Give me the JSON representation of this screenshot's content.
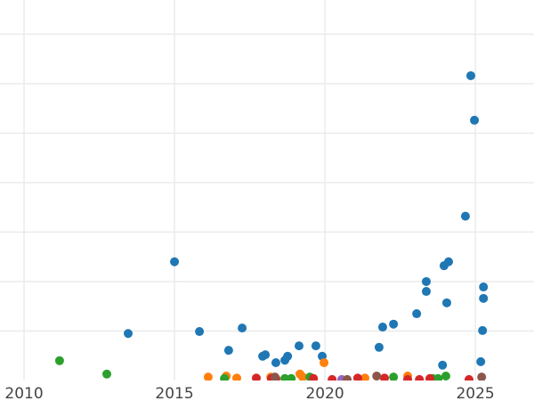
{
  "chart_data": {
    "type": "scatter",
    "title": "",
    "xlabel": "",
    "ylabel": "",
    "xlim": [
      2009.2,
      2026.95
    ],
    "ylim": [
      0,
      7.69
    ],
    "xticks": [
      2010,
      2015,
      2020,
      2025
    ],
    "xtick_labels": [
      "2010",
      "2015",
      "2020",
      "2025"
    ],
    "ygrid": [
      1,
      2,
      3,
      4,
      5,
      6,
      7
    ],
    "grid": true,
    "series": [
      {
        "color": "#1f77b4",
        "points": [
          [
            2024.85,
            6.16
          ],
          [
            2024.97,
            5.26
          ],
          [
            2024.67,
            3.32
          ],
          [
            2015.0,
            2.4
          ],
          [
            2023.96,
            2.32
          ],
          [
            2024.11,
            2.4
          ],
          [
            2023.37,
            2.0
          ],
          [
            2023.37,
            1.8
          ],
          [
            2025.27,
            1.89
          ],
          [
            2025.27,
            1.66
          ],
          [
            2024.05,
            1.57
          ],
          [
            2023.05,
            1.35
          ],
          [
            2013.46,
            0.95
          ],
          [
            2015.83,
            0.99
          ],
          [
            2017.25,
            1.06
          ],
          [
            2022.28,
            1.14
          ],
          [
            2021.92,
            1.08
          ],
          [
            2025.24,
            1.01
          ],
          [
            2016.8,
            0.61
          ],
          [
            2017.93,
            0.49
          ],
          [
            2018.02,
            0.52
          ],
          [
            2019.14,
            0.7
          ],
          [
            2019.7,
            0.7
          ],
          [
            2019.91,
            0.49
          ],
          [
            2018.37,
            0.36
          ],
          [
            2018.67,
            0.41
          ],
          [
            2018.76,
            0.49
          ],
          [
            2021.8,
            0.67
          ],
          [
            2023.91,
            0.31
          ],
          [
            2025.18,
            0.38
          ]
        ]
      },
      {
        "color": "#ff7f0e",
        "points": [
          [
            2016.12,
            0.07
          ],
          [
            2016.72,
            0.09
          ],
          [
            2017.07,
            0.05
          ],
          [
            2018.2,
            0.07
          ],
          [
            2019.17,
            0.13
          ],
          [
            2019.26,
            0.07
          ],
          [
            2019.97,
            0.36
          ],
          [
            2021.33,
            0.05
          ],
          [
            2022.75,
            0.09
          ]
        ]
      },
      {
        "color": "#2ca02c",
        "points": [
          [
            2011.18,
            0.4
          ],
          [
            2012.75,
            0.13
          ],
          [
            2016.66,
            0.04
          ],
          [
            2018.67,
            0.04
          ],
          [
            2018.88,
            0.04
          ],
          [
            2019.5,
            0.07
          ],
          [
            2022.28,
            0.07
          ],
          [
            2023.58,
            0.04
          ],
          [
            2023.76,
            0.04
          ],
          [
            2024.02,
            0.09
          ]
        ]
      },
      {
        "color": "#d62728",
        "points": [
          [
            2017.72,
            0.05
          ],
          [
            2018.22,
            0.04
          ],
          [
            2018.37,
            0.04
          ],
          [
            2019.62,
            0.04
          ],
          [
            2020.24,
            0.02
          ],
          [
            2021.09,
            0.05
          ],
          [
            2021.98,
            0.05
          ],
          [
            2022.75,
            0.02
          ],
          [
            2023.14,
            0.02
          ],
          [
            2023.49,
            0.04
          ],
          [
            2024.79,
            0.02
          ]
        ]
      },
      {
        "color": "#9467bd",
        "points": [
          [
            2020.56,
            0.02
          ]
        ]
      },
      {
        "color": "#8c564b",
        "points": [
          [
            2018.34,
            0.07
          ],
          [
            2020.74,
            0.02
          ],
          [
            2021.72,
            0.09
          ],
          [
            2025.21,
            0.07
          ]
        ]
      }
    ]
  }
}
